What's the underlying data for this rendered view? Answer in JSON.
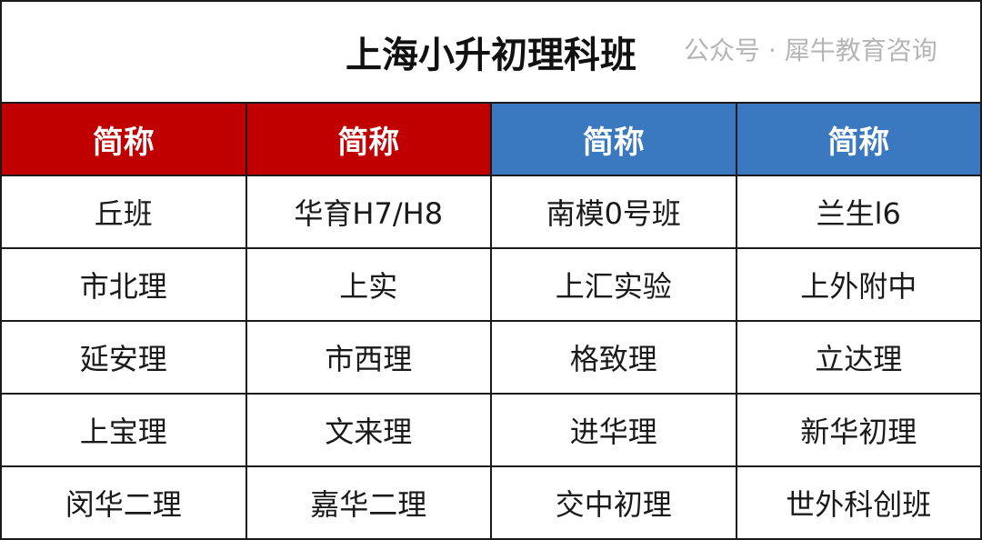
{
  "title": "上海小升初理科班",
  "headers": [
    {
      "label": "简称",
      "color": "#c00000"
    },
    {
      "label": "简称",
      "color": "#c00000"
    },
    {
      "label": "简称",
      "color": "#3a78bf"
    },
    {
      "label": "简称",
      "color": "#3a78bf"
    }
  ],
  "rows": [
    [
      "丘班",
      "华育H7/H8",
      "南模0号班",
      "兰生l6"
    ],
    [
      "市北理",
      "上实",
      "上汇实验",
      "上外附中"
    ],
    [
      "延安理",
      "市西理",
      "格致理",
      "立达理"
    ],
    [
      "上宝理",
      "文来理",
      "进华理",
      "新华初理"
    ],
    [
      "闵华二理",
      "嘉华二理",
      "交中初理",
      "世外科创班"
    ]
  ],
  "watermark": "公众号 · 犀牛教育咨询"
}
